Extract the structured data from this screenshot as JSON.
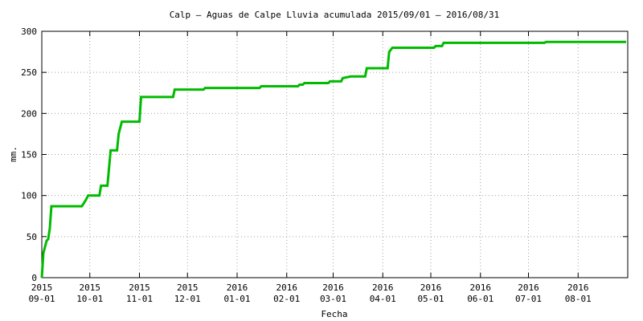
{
  "chart_data": {
    "type": "line",
    "title": "Calp – Aguas de Calpe Lluvia acumulada 2015/09/01 – 2016/08/31",
    "x_label": "Fecha",
    "y_label": "mm.",
    "xlim": [
      "2015-09-01",
      "2016-09-01"
    ],
    "ylim": [
      0,
      300
    ],
    "yticks": [
      0,
      50,
      100,
      150,
      200,
      250,
      300
    ],
    "xticks": [
      {
        "value": "2015-09-01",
        "label": [
          "2015",
          "09-01"
        ]
      },
      {
        "value": "2015-10-01",
        "label": [
          "2015",
          "10-01"
        ]
      },
      {
        "value": "2015-11-01",
        "label": [
          "2015",
          "11-01"
        ]
      },
      {
        "value": "2015-12-01",
        "label": [
          "2015",
          "12-01"
        ]
      },
      {
        "value": "2016-01-01",
        "label": [
          "2016",
          "01-01"
        ]
      },
      {
        "value": "2016-02-01",
        "label": [
          "2016",
          "02-01"
        ]
      },
      {
        "value": "2016-03-01",
        "label": [
          "2016",
          "03-01"
        ]
      },
      {
        "value": "2016-04-01",
        "label": [
          "2016",
          "04-01"
        ]
      },
      {
        "value": "2016-05-01",
        "label": [
          "2016",
          "05-01"
        ]
      },
      {
        "value": "2016-06-01",
        "label": [
          "2016",
          "06-01"
        ]
      },
      {
        "value": "2016-07-01",
        "label": [
          "2016",
          "07-01"
        ]
      },
      {
        "value": "2016-08-01",
        "label": [
          "2016",
          "08-01"
        ]
      }
    ],
    "grid": true,
    "series": [
      {
        "color": "#00bb00",
        "x": [
          "2015-09-01",
          "2015-09-02",
          "2015-09-04",
          "2015-09-05",
          "2015-09-06",
          "2015-09-07",
          "2015-09-26",
          "2015-09-27",
          "2015-09-28",
          "2015-09-30",
          "2015-10-07",
          "2015-10-08",
          "2015-10-12",
          "2015-10-14",
          "2015-10-18",
          "2015-10-19",
          "2015-10-21",
          "2015-11-01",
          "2015-11-02",
          "2015-11-22",
          "2015-11-23",
          "2015-12-11",
          "2015-12-12",
          "2016-01-15",
          "2016-01-16",
          "2016-02-08",
          "2016-02-09",
          "2016-02-11",
          "2016-02-12",
          "2016-02-27",
          "2016-02-28",
          "2016-03-06",
          "2016-03-07",
          "2016-03-12",
          "2016-03-21",
          "2016-03-22",
          "2016-04-04",
          "2016-04-05",
          "2016-04-07",
          "2016-05-03",
          "2016-05-04",
          "2016-05-08",
          "2016-05-09",
          "2016-07-11",
          "2016-07-12",
          "2016-08-31"
        ],
        "values": [
          0,
          30,
          45,
          47,
          60,
          87,
          87,
          90,
          93,
          100,
          100,
          112,
          112,
          155,
          155,
          175,
          190,
          190,
          220,
          220,
          229,
          229,
          231,
          231,
          233,
          233,
          235,
          235,
          237,
          237,
          239,
          239,
          243,
          245,
          245,
          255,
          255,
          275,
          280,
          280,
          282,
          282,
          286,
          286,
          287,
          287
        ]
      }
    ]
  }
}
